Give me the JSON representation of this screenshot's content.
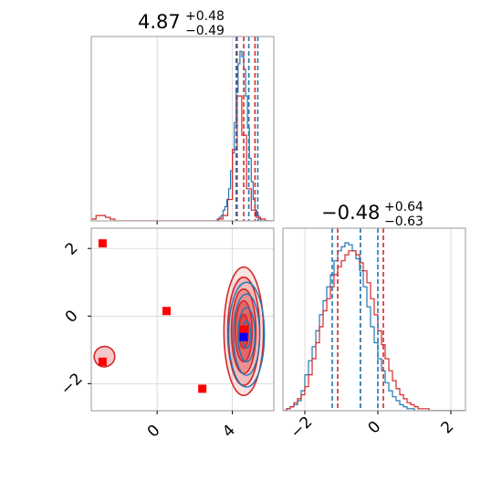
{
  "colors": {
    "blue": "#1f77b4",
    "red": "#d62728",
    "marker_red": "#ff0000",
    "marker_blue": "#0000ff",
    "grid": "#d3d3d3"
  },
  "titles": {
    "p1": {
      "value": "4.87",
      "plus": "+0.48",
      "minus": "−0.49"
    },
    "p2": {
      "value": "−0.48",
      "plus": "+0.64",
      "minus": "−0.63"
    }
  },
  "chart_data": [
    {
      "type": "histogram",
      "panel": "top-left",
      "xlim": [
        -3.5,
        6.2
      ],
      "x_ticks": [
        0,
        4
      ],
      "quantiles": {
        "blue": [
          4.2,
          4.87,
          5.35
        ],
        "red": [
          4.25,
          4.6,
          5.2
        ]
      },
      "series": [
        {
          "color": "blue",
          "bins_start": 3.0,
          "bin_width": 0.1,
          "counts": [
            0,
            0,
            1,
            2,
            3,
            6,
            8,
            12,
            18,
            28,
            38,
            55,
            72,
            88,
            95,
            92,
            85,
            70,
            52,
            35,
            22,
            12,
            6,
            3,
            1,
            0,
            0,
            0,
            0,
            0,
            0
          ]
        },
        {
          "color": "red",
          "bins_start": -3.5,
          "bin_width": 0.25,
          "counts": [
            1,
            3,
            3,
            2,
            1,
            0,
            0,
            0,
            0,
            0,
            0,
            0,
            0,
            0,
            0,
            0,
            0,
            0,
            0,
            0,
            0,
            0,
            0,
            0,
            0,
            0,
            0,
            1,
            3,
            12,
            40,
            70,
            48,
            18,
            6,
            2,
            1,
            0,
            0
          ]
        }
      ]
    },
    {
      "type": "histogram",
      "panel": "bottom-right",
      "xlim": [
        -2.6,
        2.4
      ],
      "x_ticks": [
        -2,
        0,
        2
      ],
      "x_tick_labels": [
        "−2",
        "0",
        "2"
      ],
      "quantiles": {
        "blue": [
          -1.25,
          -0.48,
          0.0
        ],
        "red": [
          -1.1,
          -0.48,
          0.15
        ]
      },
      "series": [
        {
          "color": "blue",
          "bins_start": -2.6,
          "bin_width": 0.1,
          "counts": [
            0,
            1,
            2,
            3,
            5,
            10,
            18,
            25,
            32,
            40,
            48,
            55,
            62,
            68,
            75,
            80,
            82,
            84,
            83,
            80,
            76,
            70,
            62,
            52,
            42,
            34,
            26,
            20,
            14,
            10,
            7,
            5,
            3,
            2,
            1,
            1,
            0,
            0,
            0,
            0,
            0,
            0,
            0,
            0,
            0,
            0,
            0,
            0,
            0,
            0
          ]
        },
        {
          "color": "red",
          "bins_start": -2.6,
          "bin_width": 0.1,
          "counts": [
            0,
            1,
            2,
            4,
            6,
            8,
            12,
            18,
            26,
            34,
            42,
            50,
            56,
            62,
            68,
            72,
            75,
            78,
            80,
            80,
            78,
            74,
            70,
            64,
            56,
            48,
            40,
            33,
            26,
            20,
            15,
            11,
            8,
            6,
            4,
            3,
            2,
            1,
            1,
            1,
            0,
            0,
            0,
            0,
            0,
            0,
            0,
            0,
            0,
            0
          ]
        }
      ]
    },
    {
      "type": "scatter",
      "panel": "bottom-left",
      "xlim": [
        -3.5,
        6.2
      ],
      "ylim": [
        -2.8,
        2.6
      ],
      "x_ticks": [
        0,
        4
      ],
      "y_ticks": [
        -2,
        0,
        2
      ],
      "y_tick_labels": [
        "−2",
        "0",
        "2"
      ],
      "contours": {
        "red": {
          "cx": 4.6,
          "cy": -0.45,
          "rx": [
            1.05,
            0.85,
            0.65,
            0.45,
            0.25
          ],
          "ry": [
            1.9,
            1.6,
            1.25,
            0.9,
            0.5
          ]
        },
        "blue": {
          "cx": 4.75,
          "cy": -0.55,
          "rx": [
            0.95,
            0.7,
            0.45,
            0.22
          ],
          "ry": [
            1.55,
            1.2,
            0.8,
            0.4
          ]
        },
        "red_secondary": {
          "cx": -2.8,
          "cy": -1.2,
          "rx": 0.55,
          "ry": 0.3
        }
      },
      "markers": [
        {
          "x": -2.9,
          "y": 2.15,
          "color": "marker_red"
        },
        {
          "x": 0.5,
          "y": 0.15,
          "color": "marker_red"
        },
        {
          "x": 2.4,
          "y": -2.15,
          "color": "marker_red"
        },
        {
          "x": -2.9,
          "y": -1.35,
          "color": "marker_red"
        },
        {
          "x": 4.6,
          "y": -0.4,
          "color": "marker_red"
        },
        {
          "x": 4.6,
          "y": -0.62,
          "color": "marker_blue"
        }
      ]
    }
  ]
}
